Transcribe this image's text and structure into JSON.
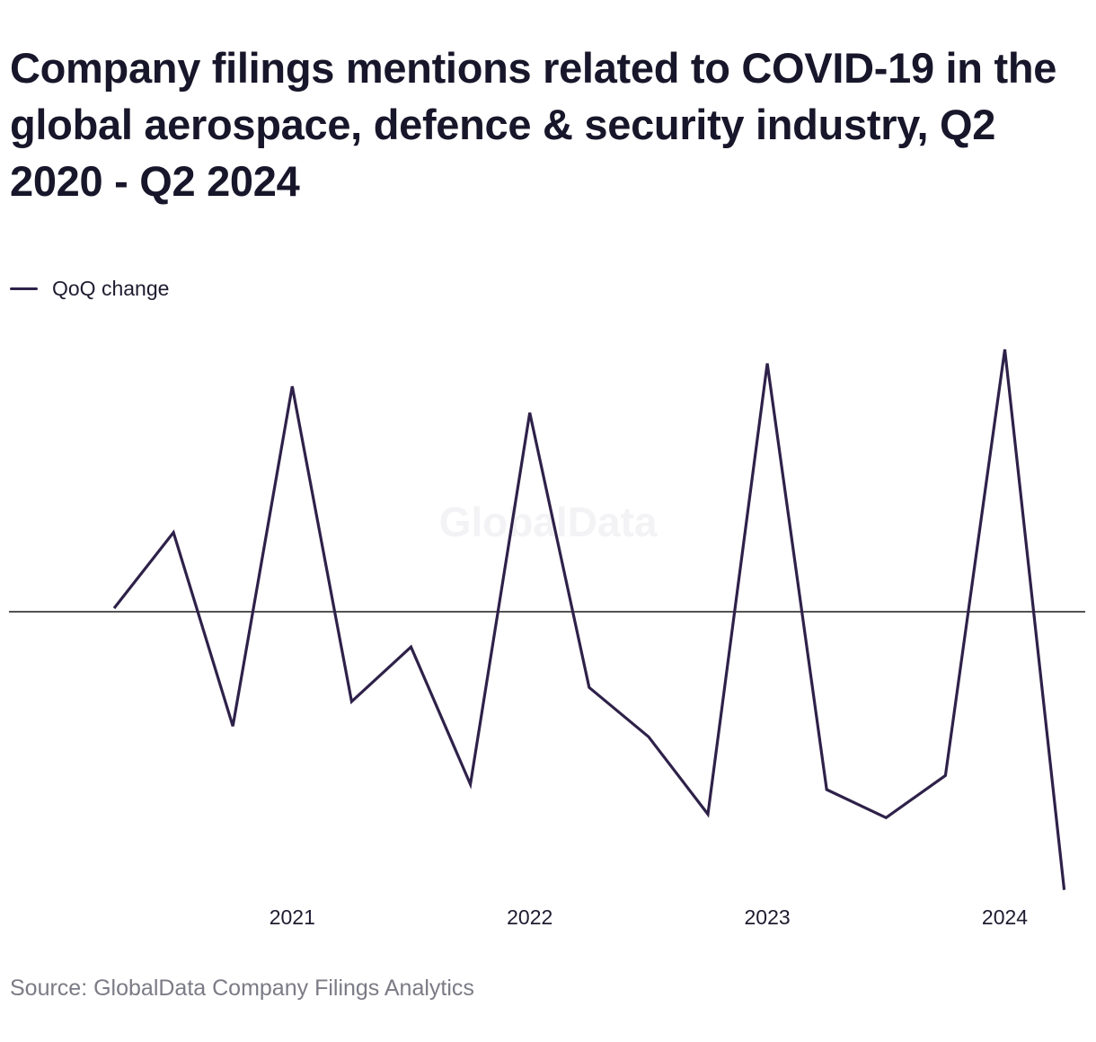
{
  "header": {
    "title": "Company filings mentions related to COVID-19 in the global aerospace, defence & security industry, Q2 2020 - Q2 2024"
  },
  "legend": {
    "label": "QoQ change"
  },
  "watermark": "GlobalData",
  "footer": {
    "source": "Source: GlobalData Company Filings Analytics"
  },
  "colors": {
    "line": "#2e2149",
    "zero_line": "#1a1a1a"
  },
  "chart_data": {
    "type": "line",
    "title": "Company filings mentions related to COVID-19 in the global aerospace, defence & security industry, Q2 2020 - Q2 2024",
    "xlabel": "",
    "ylabel": "",
    "x_tick_labels": [
      "2021",
      "2022",
      "2023",
      "2024"
    ],
    "y_axis_shown": false,
    "grid": false,
    "legend_position": "top-left",
    "x": [
      "Q2 2020",
      "Q3 2020",
      "Q4 2020",
      "Q1 2021",
      "Q2 2021",
      "Q3 2021",
      "Q4 2021",
      "Q1 2022",
      "Q2 2022",
      "Q3 2022",
      "Q4 2022",
      "Q1 2023",
      "Q2 2023",
      "Q3 2023",
      "Q4 2023",
      "Q1 2024",
      "Q2 2024"
    ],
    "series": [
      {
        "name": "QoQ change",
        "values": [
          2,
          45,
          -65,
          128,
          -51,
          -20,
          -98,
          113,
          -43,
          -71,
          -115,
          141,
          -101,
          -117,
          -93,
          149,
          -158
        ]
      }
    ]
  }
}
